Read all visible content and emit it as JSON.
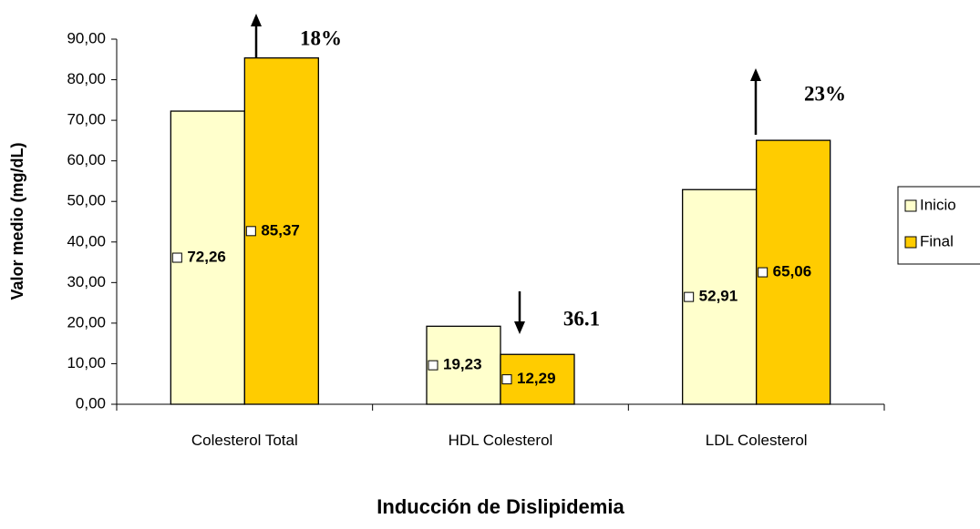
{
  "chart_data": {
    "type": "bar",
    "x_label": "Inducción de Dislipidemia",
    "y_label": "Valor medio (mg/dL)",
    "categories": [
      "Colesterol Total",
      "HDL Colesterol",
      "LDL Colesterol"
    ],
    "series": [
      {
        "name": "Inicio",
        "color": "#ffffcc",
        "values": [
          72.26,
          19.23,
          52.91
        ],
        "value_labels": [
          "72,26",
          "19,23",
          "52,91"
        ]
      },
      {
        "name": "Final",
        "color": "#ffcc00",
        "values": [
          85.37,
          12.29,
          65.06
        ],
        "value_labels": [
          "85,37",
          "12,29",
          "65,06"
        ]
      }
    ],
    "annotations": [
      "18%",
      "36.1",
      "23%"
    ],
    "ylim": [
      0,
      90
    ],
    "yticks": [
      {
        "value": 0,
        "label": "0,00"
      },
      {
        "value": 10,
        "label": "10,00"
      },
      {
        "value": 20,
        "label": "20,00"
      },
      {
        "value": 30,
        "label": "30,00"
      },
      {
        "value": 40,
        "label": "40,00"
      },
      {
        "value": 50,
        "label": "50,00"
      },
      {
        "value": 60,
        "label": "60,00"
      },
      {
        "value": 70,
        "label": "70,00"
      },
      {
        "value": 80,
        "label": "80,00"
      },
      {
        "value": 90,
        "label": "90,00"
      }
    ],
    "legend": "right"
  }
}
